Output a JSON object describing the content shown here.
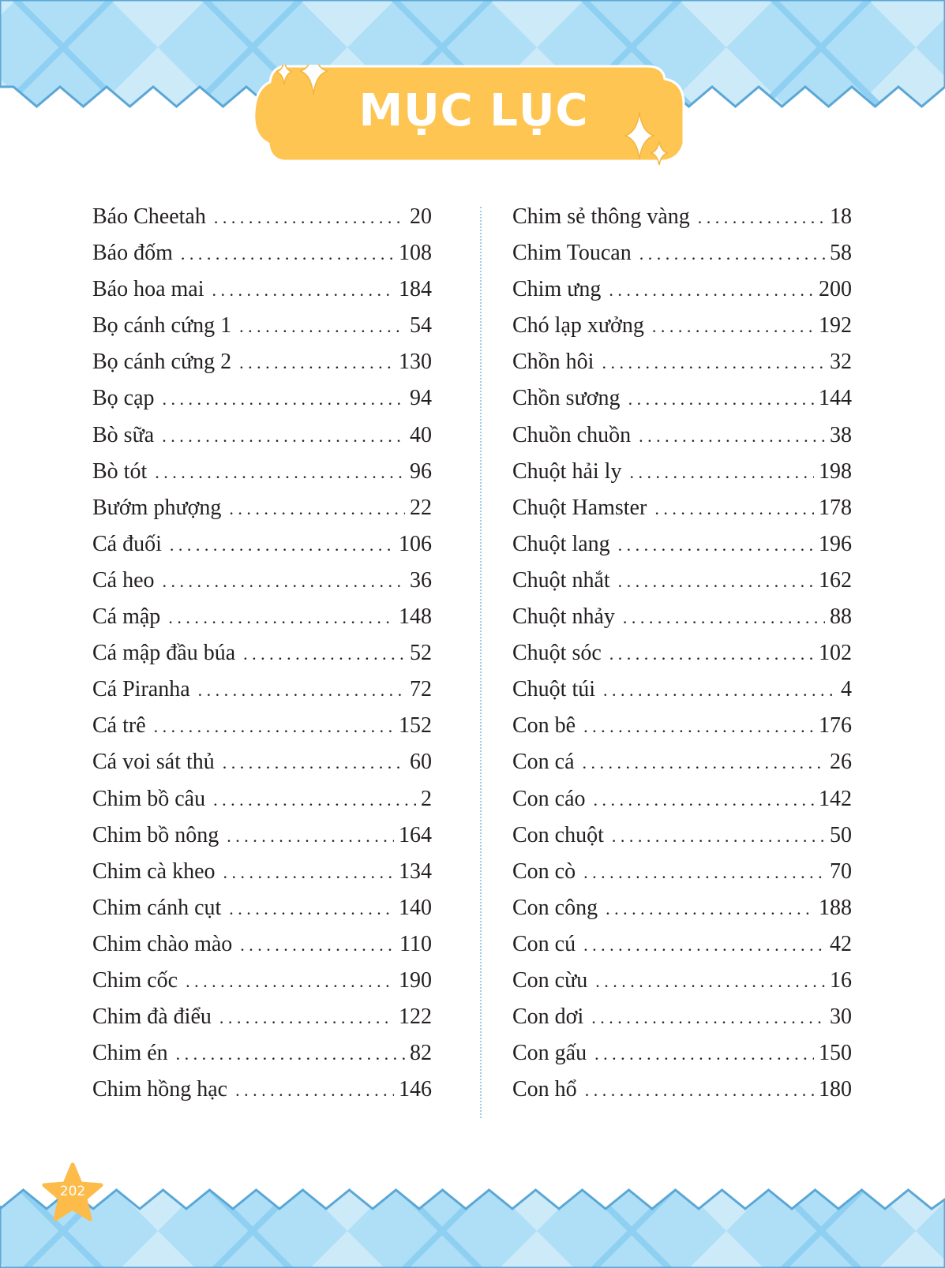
{
  "header": {
    "title": "MỤC LỤC"
  },
  "colors": {
    "band_light": "#cdeaf9",
    "band_mid": "#9dd6f3",
    "band_line": "#5aa7d6",
    "plaque": "#fec552",
    "star": "#fdbb4a"
  },
  "toc": {
    "left": [
      {
        "name": "Báo Cheetah",
        "page": "20"
      },
      {
        "name": "Báo đốm",
        "page": "108"
      },
      {
        "name": "Báo hoa mai",
        "page": "184"
      },
      {
        "name": "Bọ cánh cứng 1",
        "page": "54"
      },
      {
        "name": "Bọ cánh cứng 2",
        "page": "130"
      },
      {
        "name": "Bọ cạp",
        "page": "94"
      },
      {
        "name": "Bò sữa",
        "page": "40"
      },
      {
        "name": "Bò tót",
        "page": "96"
      },
      {
        "name": "Bướm phượng",
        "page": "22"
      },
      {
        "name": "Cá đuối",
        "page": "106"
      },
      {
        "name": "Cá heo",
        "page": "36"
      },
      {
        "name": "Cá mập",
        "page": "148"
      },
      {
        "name": "Cá mập đầu búa",
        "page": "52"
      },
      {
        "name": "Cá Piranha",
        "page": "72"
      },
      {
        "name": "Cá trê",
        "page": "152"
      },
      {
        "name": "Cá voi sát thủ",
        "page": "60"
      },
      {
        "name": "Chim bồ câu",
        "page": "2"
      },
      {
        "name": "Chim bồ nông",
        "page": "164"
      },
      {
        "name": "Chim cà kheo",
        "page": "134"
      },
      {
        "name": "Chim cánh cụt",
        "page": "140"
      },
      {
        "name": "Chim chào mào",
        "page": "110"
      },
      {
        "name": "Chim cốc",
        "page": "190"
      },
      {
        "name": "Chim đà điểu",
        "page": "122"
      },
      {
        "name": "Chim én",
        "page": "82"
      },
      {
        "name": "Chim hồng hạc",
        "page": "146"
      }
    ],
    "right": [
      {
        "name": "Chim sẻ thông vàng",
        "page": "18"
      },
      {
        "name": "Chim Toucan",
        "page": "58"
      },
      {
        "name": "Chim ưng",
        "page": "200"
      },
      {
        "name": "Chó lạp xưởng",
        "page": "192"
      },
      {
        "name": "Chồn hôi",
        "page": "32"
      },
      {
        "name": "Chồn sương",
        "page": "144"
      },
      {
        "name": "Chuồn chuồn",
        "page": "38"
      },
      {
        "name": "Chuột hải ly",
        "page": "198"
      },
      {
        "name": "Chuột Hamster",
        "page": "178"
      },
      {
        "name": "Chuột lang",
        "page": "196"
      },
      {
        "name": "Chuột nhắt",
        "page": "162"
      },
      {
        "name": "Chuột nhảy",
        "page": "88"
      },
      {
        "name": "Chuột sóc",
        "page": "102"
      },
      {
        "name": "Chuột túi",
        "page": "4"
      },
      {
        "name": "Con bê",
        "page": "176"
      },
      {
        "name": "Con cá",
        "page": "26"
      },
      {
        "name": "Con cáo",
        "page": "142"
      },
      {
        "name": "Con chuột",
        "page": "50"
      },
      {
        "name": "Con cò",
        "page": "70"
      },
      {
        "name": "Con công",
        "page": "188"
      },
      {
        "name": "Con cú",
        "page": "42"
      },
      {
        "name": "Con cừu",
        "page": "16"
      },
      {
        "name": "Con dơi",
        "page": "30"
      },
      {
        "name": "Con gấu",
        "page": "150"
      },
      {
        "name": "Con hổ",
        "page": "180"
      }
    ]
  },
  "footer": {
    "page_number": "202"
  }
}
